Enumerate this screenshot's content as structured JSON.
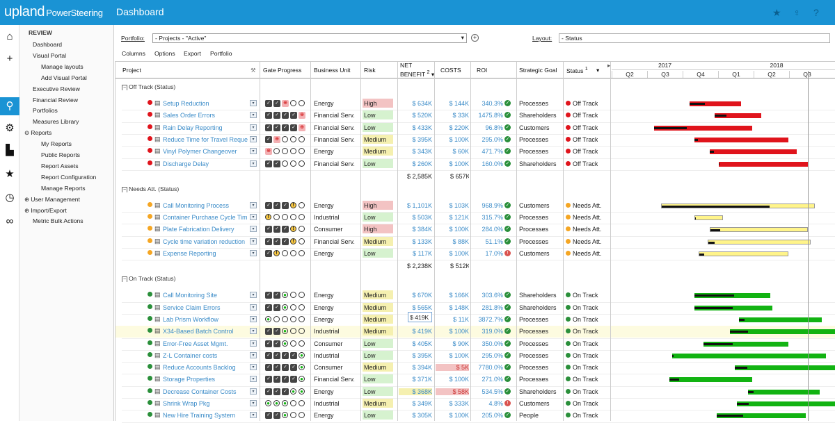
{
  "app": {
    "logo": "upland",
    "logo_sub": "PowerSteering",
    "page_title": "Dashboard"
  },
  "nav": {
    "section": "REVIEW",
    "items": [
      {
        "label": "Dashboard",
        "indent": 1
      },
      {
        "label": "Visual Portal",
        "indent": 1
      },
      {
        "label": "Manage layouts",
        "indent": 2
      },
      {
        "label": "Add Visual Portal",
        "indent": 2
      },
      {
        "label": "Executive Review",
        "indent": 1
      },
      {
        "label": "Financial Review",
        "indent": 1
      },
      {
        "label": "Portfolios",
        "indent": 1
      },
      {
        "label": "Measures Library",
        "indent": 1
      },
      {
        "label": "Reports",
        "indent": 0,
        "toggle": "⊖"
      },
      {
        "label": "My Reports",
        "indent": 2
      },
      {
        "label": "Public Reports",
        "indent": 2
      },
      {
        "label": "Report Assets",
        "indent": 2
      },
      {
        "label": "Report Configuration",
        "indent": 2
      },
      {
        "label": "Manage Reports",
        "indent": 2
      },
      {
        "label": "User Management",
        "indent": 0,
        "toggle": "⊕"
      },
      {
        "label": "Import/Export",
        "indent": 0,
        "toggle": "⊕"
      },
      {
        "label": "Metric Bulk Actions",
        "indent": 1
      }
    ]
  },
  "toolbar": {
    "portfolio_label": "Portfolio:",
    "portfolio_value": "- Projects - \"Active\"",
    "layout_label": "Layout:",
    "layout_value": "- Status"
  },
  "menu": [
    "Columns",
    "Options",
    "Export",
    "Portfolio"
  ],
  "columns": {
    "project": "Project",
    "gate": "Gate Progress",
    "bu": "Business Unit",
    "risk": "Risk",
    "net1": "NET",
    "net2": "BENEFIT",
    "net_sup": "2",
    "costs": "COSTS",
    "roi": "ROI",
    "goal": "Strategic Goal",
    "status": "Status",
    "status_sup": "1"
  },
  "timeline": {
    "years": [
      "2017",
      "2018"
    ],
    "quarters": [
      "Q2",
      "Q3",
      "Q4",
      "Q1",
      "Q2",
      "Q3"
    ]
  },
  "colors": {
    "red": "#e0141c",
    "yellow": "#fff48a",
    "green": "#12b312",
    "accent": "#1a93d4",
    "risk_high": "#f3c3c3",
    "risk_medium": "#f5f0b0",
    "risk_low": "#d6f2cf"
  },
  "groups": [
    {
      "title": "Off Track (Status)",
      "total_net": "$ 2,585K",
      "total_costs": "$ 657K",
      "indicator": "red",
      "rows": [
        {
          "name": "Setup Reduction",
          "gate": "DDPOO",
          "bu": "Energy",
          "risk": "High",
          "net": "$ 634K",
          "costs": "$ 144K",
          "roi": "340.3%",
          "roi_icon": "ok",
          "goal": "Processes",
          "status": "Off Track",
          "bar": [
            0.35,
            0.58,
            0.29
          ]
        },
        {
          "name": "Sales Order Errors",
          "gate": "DDDDP",
          "bu": "Financial Serv.",
          "risk": "Low",
          "net": "$ 520K",
          "costs": "$ 33K",
          "roi": "1475.8%",
          "roi_icon": "ok",
          "goal": "Shareholders",
          "status": "Off Track",
          "bar": [
            0.46,
            0.67,
            0.25
          ]
        },
        {
          "name": "Rain Delay Reporting",
          "gate": "DDDDP",
          "bu": "Financial Serv.",
          "risk": "Low",
          "net": "$ 433K",
          "costs": "$ 220K",
          "roi": "96.8%",
          "roi_icon": "ok",
          "goal": "Customers",
          "status": "Off Track",
          "bar": [
            0.19,
            0.63,
            0.33
          ]
        },
        {
          "name": "Reduce Time for Travel Reque",
          "gate": "DPOOO",
          "bu": "Financial Serv.",
          "risk": "Medium",
          "net": "$ 395K",
          "costs": "$ 100K",
          "roi": "295.0%",
          "roi_icon": "ok",
          "goal": "Processes",
          "status": "Off Track",
          "bar": [
            0.37,
            0.79,
            0.04
          ]
        },
        {
          "name": "Vinyl Polymer Changeover",
          "gate": "POOOO",
          "bu": "Energy",
          "risk": "Medium",
          "net": "$ 343K",
          "costs": "$ 60K",
          "roi": "471.7%",
          "roi_icon": "ok",
          "goal": "Processes",
          "status": "Off Track",
          "bar": [
            0.44,
            0.83,
            0.05
          ]
        },
        {
          "name": "Discharge Delay",
          "gate": "DDOOO",
          "bu": "Financial Serv.",
          "risk": "Low",
          "net": "$ 260K",
          "costs": "$ 100K",
          "roi": "160.0%",
          "roi_icon": "ok",
          "goal": "Shareholders",
          "status": "Off Track",
          "bar": [
            0.48,
            0.88,
            0.01
          ]
        }
      ]
    },
    {
      "title": "Needs Att. (Status)",
      "total_net": "$ 2,238K",
      "total_costs": "$ 512K",
      "indicator": "yellow",
      "rows": [
        {
          "name": "Call Monitoring Process",
          "gate": "DDDYO",
          "bu": "Energy",
          "risk": "High",
          "net": "$ 1,101K",
          "costs": "$ 103K",
          "roi": "968.9%",
          "roi_icon": "ok",
          "goal": "Customers",
          "status": "Needs Att.",
          "bar": [
            0.22,
            0.91,
            0.71
          ]
        },
        {
          "name": "Container Purchase Cycle Tim",
          "gate": "YOOOO",
          "bu": "Industrial",
          "risk": "Low",
          "net": "$ 503K",
          "costs": "$ 121K",
          "roi": "315.7%",
          "roi_icon": "ok",
          "goal": "Processes",
          "status": "Needs Att.",
          "bar": [
            0.37,
            0.5,
            0.04
          ]
        },
        {
          "name": "Plate Fabrication Delivery",
          "gate": "DDDYO",
          "bu": "Consumer",
          "risk": "High",
          "net": "$ 384K",
          "costs": "$ 100K",
          "roi": "284.0%",
          "roi_icon": "ok",
          "goal": "Processes",
          "status": "Needs Att.",
          "bar": [
            0.44,
            0.88,
            0.1
          ]
        },
        {
          "name": "Cycle time variation reduction",
          "gate": "DDDYO",
          "bu": "Financial Serv.",
          "risk": "Medium",
          "net": "$ 133K",
          "costs": "$ 88K",
          "roi": "51.1%",
          "roi_icon": "ok",
          "goal": "Processes",
          "status": "Needs Att.",
          "bar": [
            0.43,
            0.89,
            0.06
          ]
        },
        {
          "name": "Expense Reporting",
          "gate": "DYOOO",
          "bu": "Energy",
          "risk": "Low",
          "net": "$ 117K",
          "costs": "$ 100K",
          "roi": "17.0%",
          "roi_icon": "warn",
          "goal": "Customers",
          "status": "Needs Att.",
          "bar": [
            0.39,
            0.79,
            0.05
          ]
        }
      ]
    },
    {
      "title": "On Track (Status)",
      "total_net": "",
      "total_costs": "",
      "indicator": "green",
      "rows": [
        {
          "name": "Call Monitoring Site",
          "gate": "DDGOO",
          "bu": "Energy",
          "risk": "Medium",
          "net": "$ 670K",
          "costs": "$ 166K",
          "roi": "303.6%",
          "roi_icon": "ok",
          "goal": "Shareholders",
          "status": "On Track",
          "bar": [
            0.37,
            0.71,
            0.52
          ]
        },
        {
          "name": "Service Claim Errors",
          "gate": "DDGOO",
          "bu": "Energy",
          "risk": "Medium",
          "net": "$ 565K",
          "costs": "$ 148K",
          "roi": "281.8%",
          "roi_icon": "ok",
          "goal": "Shareholders",
          "status": "On Track",
          "bar": [
            0.37,
            0.72,
            0.49
          ]
        },
        {
          "name": "Lab Prism Workflow",
          "gate": "GOOOO",
          "bu": "Energy",
          "risk": "Medium",
          "net": "$ 419K",
          "costs": "$ 11K",
          "roi": "3872.7%",
          "roi_icon": "ok",
          "goal": "Processes",
          "status": "On Track",
          "bar": [
            0.57,
            0.94,
            0.07
          ]
        },
        {
          "name": "X34-Based Batch Control",
          "gate": "DDGOO",
          "bu": "Industrial",
          "risk": "Medium",
          "net": "$ 419K",
          "costs": "$ 100K",
          "roi": "319.0%",
          "roi_icon": "ok",
          "goal": "Processes",
          "status": "On Track",
          "bar": [
            0.53,
            1.0,
            0.17
          ]
        },
        {
          "name": "Error-Free Asset Mgmt.",
          "gate": "DDGOO",
          "bu": "Consumer",
          "risk": "Low",
          "net": "$ 405K",
          "costs": "$ 90K",
          "roi": "350.0%",
          "roi_icon": "ok",
          "goal": "Processes",
          "status": "On Track",
          "bar": [
            0.41,
            0.79,
            0.35
          ]
        },
        {
          "name": "Z-L Container costs",
          "gate": "DDDDG",
          "bu": "Industrial",
          "risk": "Low",
          "net": "$ 395K",
          "costs": "$ 100K",
          "roi": "295.0%",
          "roi_icon": "ok",
          "goal": "Processes",
          "status": "On Track",
          "bar": [
            0.27,
            0.96,
            0.01
          ]
        },
        {
          "name": "Reduce Accounts Backlog",
          "gate": "DDDDG",
          "bu": "Consumer",
          "risk": "Medium",
          "net": "$ 394K",
          "costs": "$ 5K",
          "roi": "7780.0%",
          "roi_icon": "ok",
          "goal": "Processes",
          "status": "On Track",
          "bar": [
            0.55,
            1.0,
            0.13
          ]
        },
        {
          "name": "Storage Properties",
          "gate": "DDDDG",
          "bu": "Financial Serv.",
          "risk": "Low",
          "net": "$ 371K",
          "costs": "$ 100K",
          "roi": "271.0%",
          "roi_icon": "ok",
          "goal": "Processes",
          "status": "On Track",
          "bar": [
            0.26,
            0.63,
            0.11
          ]
        },
        {
          "name": "Decrease Container Costs",
          "gate": "DDDGG",
          "bu": "Energy",
          "risk": "Low",
          "net": "$ 368K",
          "costs": "$ 58K",
          "roi": "534.5%",
          "roi_icon": "ok",
          "goal": "Shareholders",
          "status": "On Track",
          "bar": [
            0.61,
            0.93,
            0.08
          ]
        },
        {
          "name": "Shrink Wrap Pkg",
          "gate": "GGGOO",
          "bu": "Industrial",
          "risk": "Medium",
          "net": "$ 349K",
          "costs": "$ 333K",
          "roi": "4.8%",
          "roi_icon": "warn",
          "goal": "Customers",
          "status": "On Track",
          "bar": [
            0.56,
            1.0,
            0.12
          ]
        },
        {
          "name": "New Hire Training System",
          "gate": "DDGOO",
          "bu": "Energy",
          "risk": "Low",
          "net": "$ 305K",
          "costs": "$ 100K",
          "roi": "205.0%",
          "roi_icon": "ok",
          "goal": "People",
          "status": "On Track",
          "bar": [
            0.47,
            0.87,
            0.3
          ]
        }
      ]
    }
  ],
  "edit_value": "$ 419K"
}
